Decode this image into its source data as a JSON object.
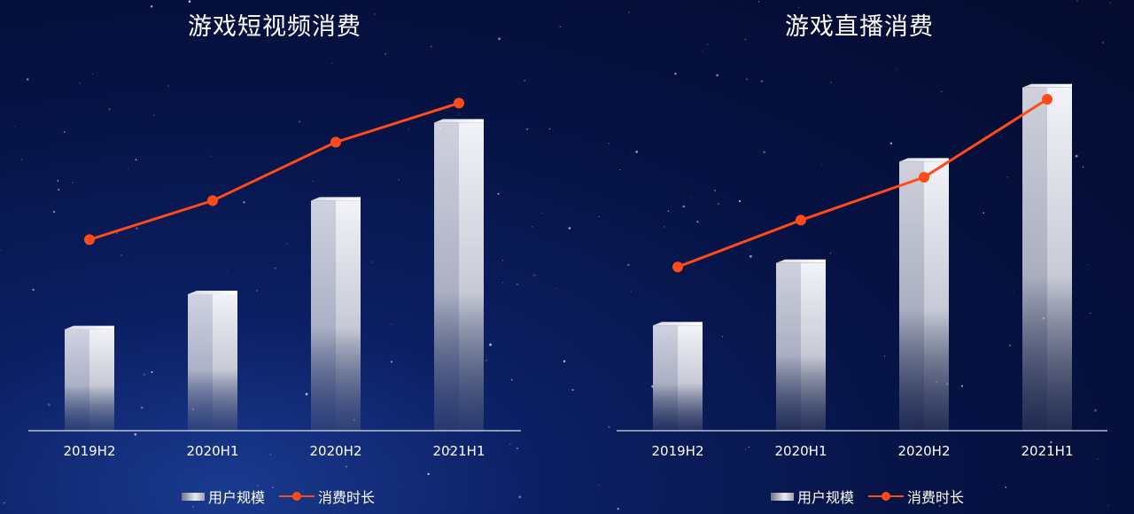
{
  "chart_data": [
    {
      "type": "bar",
      "title": "游戏短视频消费",
      "categories": [
        "2019H2",
        "2020H1",
        "2020H2",
        "2021H1"
      ],
      "series": [
        {
          "name": "用户规模",
          "type": "bar",
          "values": [
            26,
            35,
            59,
            79
          ]
        },
        {
          "name": "消费时长",
          "type": "line",
          "values": [
            49,
            59,
            74,
            84
          ]
        }
      ],
      "ylim": [
        0,
        100
      ],
      "grid": false,
      "legend_position": "bottom",
      "colors": {
        "bar_light": "#f2f3f8",
        "bar_dark": "#5d6478",
        "line": "#ff4a1a",
        "axis": "#d8dbe6"
      }
    },
    {
      "type": "bar",
      "title": "游戏直播消费",
      "categories": [
        "2019H2",
        "2020H1",
        "2020H2",
        "2021H1"
      ],
      "series": [
        {
          "name": "用户规模",
          "type": "bar",
          "values": [
            27,
            43,
            69,
            88
          ]
        },
        {
          "name": "消费时长",
          "type": "line",
          "values": [
            42,
            54,
            65,
            85
          ]
        }
      ],
      "ylim": [
        0,
        100
      ],
      "grid": false,
      "legend_position": "bottom",
      "colors": {
        "bar_light": "#f2f3f8",
        "bar_dark": "#5d6478",
        "line": "#ff4a1a",
        "axis": "#d8dbe6"
      }
    }
  ]
}
